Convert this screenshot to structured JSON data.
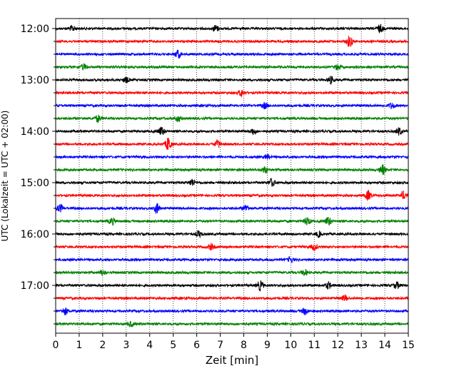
{
  "chart_data": {
    "type": "line",
    "title": "",
    "xlabel": "Zeit  [min]",
    "ylabel": "UTC (Lokalzeit = UTC + 02:00)",
    "xlim": [
      0,
      15
    ],
    "x_ticks": [
      "0",
      "1",
      "2",
      "3",
      "4",
      "5",
      "6",
      "7",
      "8",
      "9",
      "10",
      "11",
      "12",
      "13",
      "14",
      "15"
    ],
    "y_ticks": [
      "12:00",
      "13:00",
      "14:00",
      "15:00",
      "16:00",
      "17:00"
    ],
    "trace_interval_minutes": 15,
    "trace_colors": [
      "#000000",
      "#ff0000",
      "#0000ff",
      "#008000"
    ],
    "grid": "vertical dotted at each minute",
    "series": [
      {
        "start": "12:00",
        "color": "#000000",
        "events": [
          [
            0.7,
            1.2
          ],
          [
            6.8,
            1.5
          ],
          [
            13.8,
            1.8
          ]
        ]
      },
      {
        "start": "12:15",
        "color": "#ff0000",
        "events": [
          [
            12.5,
            2.6
          ]
        ]
      },
      {
        "start": "12:30",
        "color": "#0000ff",
        "events": [
          [
            5.2,
            1.8
          ]
        ]
      },
      {
        "start": "12:45",
        "color": "#008000",
        "events": [
          [
            1.2,
            1.3
          ],
          [
            12.0,
            1.3
          ]
        ]
      },
      {
        "start": "13:00",
        "color": "#000000",
        "events": [
          [
            3.0,
            1.2
          ],
          [
            11.7,
            1.6
          ]
        ]
      },
      {
        "start": "13:15",
        "color": "#ff0000",
        "events": [
          [
            7.9,
            1.5
          ]
        ]
      },
      {
        "start": "13:30",
        "color": "#0000ff",
        "events": [
          [
            8.9,
            1.3
          ],
          [
            14.3,
            1.3
          ]
        ]
      },
      {
        "start": "13:45",
        "color": "#008000",
        "events": [
          [
            1.8,
            1.6
          ],
          [
            5.2,
            1.3
          ]
        ]
      },
      {
        "start": "14:00",
        "color": "#000000",
        "events": [
          [
            4.5,
            2.0
          ],
          [
            8.4,
            1.4
          ],
          [
            14.6,
            1.6
          ]
        ]
      },
      {
        "start": "14:15",
        "color": "#ff0000",
        "events": [
          [
            4.8,
            3.2
          ],
          [
            6.9,
            1.6
          ]
        ]
      },
      {
        "start": "14:30",
        "color": "#0000ff",
        "events": [
          [
            9.0,
            1.1
          ]
        ]
      },
      {
        "start": "14:45",
        "color": "#008000",
        "events": [
          [
            8.9,
            1.5
          ],
          [
            13.9,
            2.2
          ]
        ]
      },
      {
        "start": "15:00",
        "color": "#000000",
        "events": [
          [
            5.8,
            1.6
          ],
          [
            9.2,
            1.8
          ]
        ]
      },
      {
        "start": "15:15",
        "color": "#ff0000",
        "events": [
          [
            13.3,
            2.2
          ],
          [
            14.8,
            1.8
          ]
        ]
      },
      {
        "start": "15:30",
        "color": "#0000ff",
        "events": [
          [
            0.2,
            1.6
          ],
          [
            4.3,
            2.2
          ],
          [
            8.1,
            1.6
          ]
        ]
      },
      {
        "start": "15:45",
        "color": "#008000",
        "events": [
          [
            2.4,
            1.5
          ],
          [
            10.7,
            1.8
          ],
          [
            11.6,
            2.0
          ]
        ]
      },
      {
        "start": "16:00",
        "color": "#000000",
        "events": [
          [
            6.1,
            1.5
          ],
          [
            11.2,
            1.2
          ]
        ]
      },
      {
        "start": "16:15",
        "color": "#ff0000",
        "events": [
          [
            6.6,
            1.3
          ],
          [
            11.0,
            1.5
          ]
        ]
      },
      {
        "start": "16:30",
        "color": "#0000ff",
        "events": [
          [
            10.0,
            1.2
          ]
        ]
      },
      {
        "start": "16:45",
        "color": "#008000",
        "events": [
          [
            2.0,
            1.2
          ],
          [
            10.6,
            1.3
          ]
        ]
      },
      {
        "start": "17:00",
        "color": "#000000",
        "events": [
          [
            8.7,
            2.2
          ],
          [
            11.6,
            1.4
          ],
          [
            14.5,
            1.5
          ]
        ]
      },
      {
        "start": "17:15",
        "color": "#ff0000",
        "events": [
          [
            12.3,
            1.2
          ]
        ]
      },
      {
        "start": "17:30",
        "color": "#0000ff",
        "events": [
          [
            0.4,
            1.6
          ],
          [
            10.6,
            1.5
          ]
        ]
      },
      {
        "start": "17:45",
        "color": "#008000",
        "events": [
          [
            3.2,
            1.1
          ]
        ]
      }
    ]
  }
}
